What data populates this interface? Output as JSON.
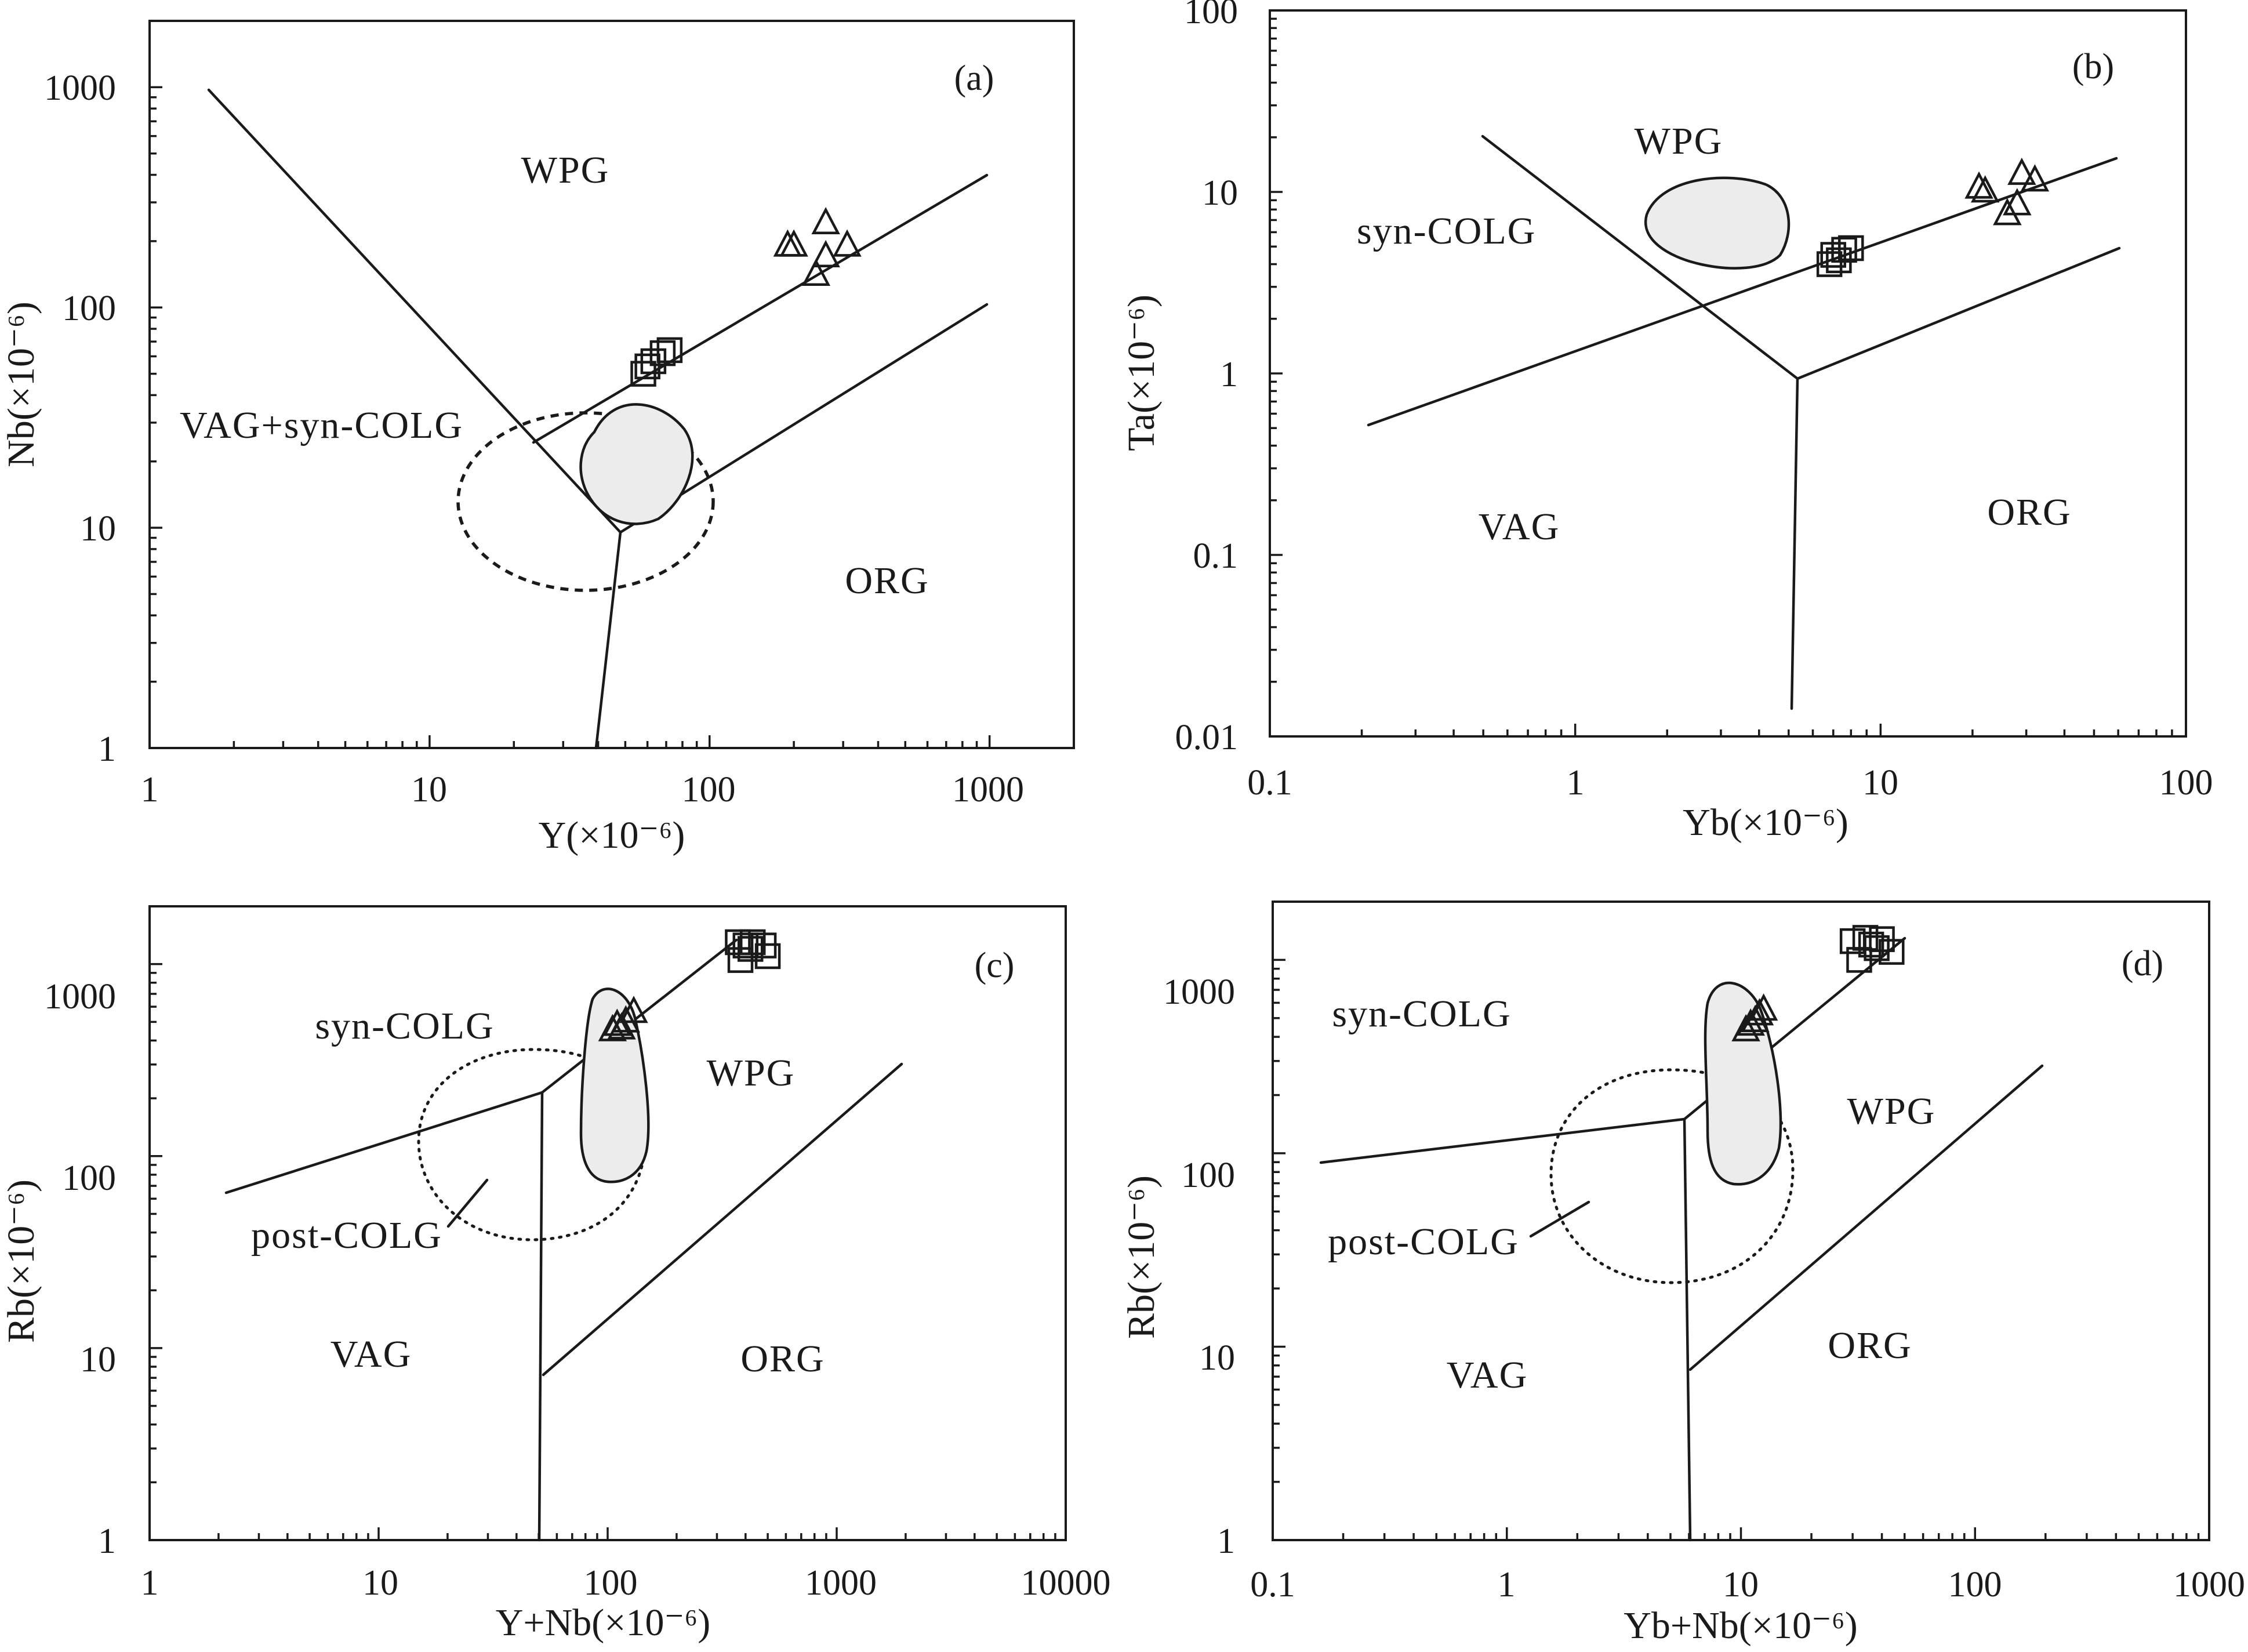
{
  "chart_data": [
    {
      "type": "scatter",
      "panel_label": "(a)",
      "xlabel": "Y(×10⁻⁶)",
      "ylabel": "Nb(×10⁻⁶)",
      "xscale": "log",
      "yscale": "log",
      "xlim": [
        1,
        2000
      ],
      "ylim": [
        1,
        2000
      ],
      "x_ticks": [
        "1",
        "10",
        "100",
        "1000"
      ],
      "y_ticks": [
        "1",
        "10",
        "100",
        "1000"
      ],
      "region_labels": [
        "WPG",
        "VAG+syn-COLG",
        "ORG"
      ],
      "series": [
        {
          "marker": "square",
          "points": [
            [
              58,
              50
            ],
            [
              60,
              54
            ],
            [
              63,
              57
            ],
            [
              68,
              62
            ],
            [
              72,
              64
            ]
          ]
        },
        {
          "marker": "triangle",
          "points": [
            [
              190,
              190
            ],
            [
              200,
              190
            ],
            [
              260,
              240
            ],
            [
              260,
              170
            ],
            [
              310,
              190
            ],
            [
              240,
              140
            ]
          ]
        }
      ]
    },
    {
      "type": "scatter",
      "panel_label": "(b)",
      "xlabel": "Yb(×10⁻⁶)",
      "ylabel": "Ta(×10⁻⁶)",
      "xscale": "log",
      "yscale": "log",
      "xlim": [
        0.1,
        100
      ],
      "ylim": [
        0.01,
        100
      ],
      "x_ticks": [
        "0.1",
        "1",
        "10",
        "100"
      ],
      "y_ticks": [
        "0.01",
        "0.1",
        "1",
        "10",
        "100"
      ],
      "region_labels": [
        "WPG",
        "syn-COLG",
        "VAG",
        "ORG"
      ],
      "series": [
        {
          "marker": "square",
          "points": [
            [
              6.8,
              4.0
            ],
            [
              7.0,
              4.5
            ],
            [
              7.3,
              4.2
            ],
            [
              7.6,
              4.8
            ],
            [
              8.0,
              4.9
            ]
          ]
        },
        {
          "marker": "triangle",
          "points": [
            [
              21,
              10.5
            ],
            [
              22,
              10.0
            ],
            [
              29,
              12.5
            ],
            [
              32,
              11.5
            ],
            [
              28,
              8.5
            ],
            [
              26,
              7.5
            ]
          ]
        }
      ]
    },
    {
      "type": "scatter",
      "panel_label": "(c)",
      "xlabel": "Y+Nb(×10⁻⁶)",
      "ylabel": "Rb(×10⁻⁶)",
      "xscale": "log",
      "yscale": "log",
      "xlim": [
        1,
        10000
      ],
      "ylim": [
        1,
        2000
      ],
      "x_ticks": [
        "1",
        "10",
        "100",
        "1000",
        "10000"
      ],
      "y_ticks": [
        "1",
        "10",
        "100",
        "1000"
      ],
      "region_labels": [
        "syn-COLG",
        "WPG",
        "post-COLG",
        "VAG",
        "ORG"
      ],
      "series": [
        {
          "marker": "square",
          "points": [
            [
              370,
              1300
            ],
            [
              400,
              1250
            ],
            [
              430,
              1300
            ],
            [
              480,
              1250
            ],
            [
              500,
              1100
            ],
            [
              380,
              1050
            ],
            [
              420,
              1200
            ]
          ]
        },
        {
          "marker": "triangle",
          "points": [
            [
              105,
              450
            ],
            [
              110,
              480
            ],
            [
              120,
              500
            ],
            [
              130,
              560
            ],
            [
              115,
              460
            ]
          ]
        }
      ]
    },
    {
      "type": "scatter",
      "panel_label": "(d)",
      "xlabel": "Yb+Nb(×10⁻⁶)",
      "ylabel": "Rb(×10⁻⁶)",
      "xscale": "log",
      "yscale": "log",
      "xlim": [
        0.1,
        1000
      ],
      "ylim": [
        1,
        2000
      ],
      "x_ticks": [
        "0.1",
        "1",
        "10",
        "100",
        "1000"
      ],
      "y_ticks": [
        "1",
        "10",
        "100",
        "1000"
      ],
      "region_labels": [
        "syn-COLG",
        "WPG",
        "post-COLG",
        "VAG",
        "ORG"
      ],
      "series": [
        {
          "marker": "square",
          "points": [
            [
              30,
              1250
            ],
            [
              34,
              1300
            ],
            [
              36,
              1200
            ],
            [
              40,
              1280
            ],
            [
              44,
              1100
            ],
            [
              32,
              1000
            ],
            [
              38,
              1150
            ]
          ]
        },
        {
          "marker": "triangle",
          "points": [
            [
              10.5,
              430
            ],
            [
              11,
              460
            ],
            [
              12,
              520
            ],
            [
              12.5,
              550
            ],
            [
              11.5,
              480
            ]
          ]
        }
      ]
    }
  ]
}
